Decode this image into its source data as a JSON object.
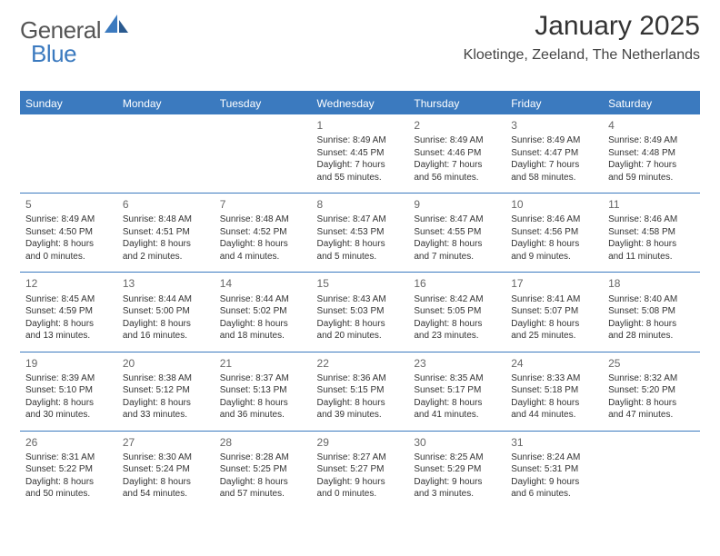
{
  "brand": {
    "part1": "General",
    "part2": "Blue",
    "text_color": "#555555",
    "accent_color": "#3b7abf"
  },
  "title": {
    "month": "January 2025",
    "location": "Kloetinge, Zeeland, The Netherlands"
  },
  "colors": {
    "header_bg": "#3b7abf",
    "header_text": "#ffffff",
    "rule": "#3b7abf",
    "body_text": "#333333",
    "daynum": "#666666",
    "background": "#ffffff"
  },
  "fonts": {
    "month_size": 30,
    "location_size": 16,
    "th_size": 12,
    "cell_size": 10,
    "daynum_size": 12
  },
  "headers": [
    "Sunday",
    "Monday",
    "Tuesday",
    "Wednesday",
    "Thursday",
    "Friday",
    "Saturday"
  ],
  "weeks": [
    [
      {
        "empty": true
      },
      {
        "empty": true
      },
      {
        "empty": true
      },
      {
        "day": "1",
        "sunrise": "Sunrise: 8:49 AM",
        "sunset": "Sunset: 4:45 PM",
        "daylight1": "Daylight: 7 hours",
        "daylight2": "and 55 minutes."
      },
      {
        "day": "2",
        "sunrise": "Sunrise: 8:49 AM",
        "sunset": "Sunset: 4:46 PM",
        "daylight1": "Daylight: 7 hours",
        "daylight2": "and 56 minutes."
      },
      {
        "day": "3",
        "sunrise": "Sunrise: 8:49 AM",
        "sunset": "Sunset: 4:47 PM",
        "daylight1": "Daylight: 7 hours",
        "daylight2": "and 58 minutes."
      },
      {
        "day": "4",
        "sunrise": "Sunrise: 8:49 AM",
        "sunset": "Sunset: 4:48 PM",
        "daylight1": "Daylight: 7 hours",
        "daylight2": "and 59 minutes."
      }
    ],
    [
      {
        "day": "5",
        "sunrise": "Sunrise: 8:49 AM",
        "sunset": "Sunset: 4:50 PM",
        "daylight1": "Daylight: 8 hours",
        "daylight2": "and 0 minutes."
      },
      {
        "day": "6",
        "sunrise": "Sunrise: 8:48 AM",
        "sunset": "Sunset: 4:51 PM",
        "daylight1": "Daylight: 8 hours",
        "daylight2": "and 2 minutes."
      },
      {
        "day": "7",
        "sunrise": "Sunrise: 8:48 AM",
        "sunset": "Sunset: 4:52 PM",
        "daylight1": "Daylight: 8 hours",
        "daylight2": "and 4 minutes."
      },
      {
        "day": "8",
        "sunrise": "Sunrise: 8:47 AM",
        "sunset": "Sunset: 4:53 PM",
        "daylight1": "Daylight: 8 hours",
        "daylight2": "and 5 minutes."
      },
      {
        "day": "9",
        "sunrise": "Sunrise: 8:47 AM",
        "sunset": "Sunset: 4:55 PM",
        "daylight1": "Daylight: 8 hours",
        "daylight2": "and 7 minutes."
      },
      {
        "day": "10",
        "sunrise": "Sunrise: 8:46 AM",
        "sunset": "Sunset: 4:56 PM",
        "daylight1": "Daylight: 8 hours",
        "daylight2": "and 9 minutes."
      },
      {
        "day": "11",
        "sunrise": "Sunrise: 8:46 AM",
        "sunset": "Sunset: 4:58 PM",
        "daylight1": "Daylight: 8 hours",
        "daylight2": "and 11 minutes."
      }
    ],
    [
      {
        "day": "12",
        "sunrise": "Sunrise: 8:45 AM",
        "sunset": "Sunset: 4:59 PM",
        "daylight1": "Daylight: 8 hours",
        "daylight2": "and 13 minutes."
      },
      {
        "day": "13",
        "sunrise": "Sunrise: 8:44 AM",
        "sunset": "Sunset: 5:00 PM",
        "daylight1": "Daylight: 8 hours",
        "daylight2": "and 16 minutes."
      },
      {
        "day": "14",
        "sunrise": "Sunrise: 8:44 AM",
        "sunset": "Sunset: 5:02 PM",
        "daylight1": "Daylight: 8 hours",
        "daylight2": "and 18 minutes."
      },
      {
        "day": "15",
        "sunrise": "Sunrise: 8:43 AM",
        "sunset": "Sunset: 5:03 PM",
        "daylight1": "Daylight: 8 hours",
        "daylight2": "and 20 minutes."
      },
      {
        "day": "16",
        "sunrise": "Sunrise: 8:42 AM",
        "sunset": "Sunset: 5:05 PM",
        "daylight1": "Daylight: 8 hours",
        "daylight2": "and 23 minutes."
      },
      {
        "day": "17",
        "sunrise": "Sunrise: 8:41 AM",
        "sunset": "Sunset: 5:07 PM",
        "daylight1": "Daylight: 8 hours",
        "daylight2": "and 25 minutes."
      },
      {
        "day": "18",
        "sunrise": "Sunrise: 8:40 AM",
        "sunset": "Sunset: 5:08 PM",
        "daylight1": "Daylight: 8 hours",
        "daylight2": "and 28 minutes."
      }
    ],
    [
      {
        "day": "19",
        "sunrise": "Sunrise: 8:39 AM",
        "sunset": "Sunset: 5:10 PM",
        "daylight1": "Daylight: 8 hours",
        "daylight2": "and 30 minutes."
      },
      {
        "day": "20",
        "sunrise": "Sunrise: 8:38 AM",
        "sunset": "Sunset: 5:12 PM",
        "daylight1": "Daylight: 8 hours",
        "daylight2": "and 33 minutes."
      },
      {
        "day": "21",
        "sunrise": "Sunrise: 8:37 AM",
        "sunset": "Sunset: 5:13 PM",
        "daylight1": "Daylight: 8 hours",
        "daylight2": "and 36 minutes."
      },
      {
        "day": "22",
        "sunrise": "Sunrise: 8:36 AM",
        "sunset": "Sunset: 5:15 PM",
        "daylight1": "Daylight: 8 hours",
        "daylight2": "and 39 minutes."
      },
      {
        "day": "23",
        "sunrise": "Sunrise: 8:35 AM",
        "sunset": "Sunset: 5:17 PM",
        "daylight1": "Daylight: 8 hours",
        "daylight2": "and 41 minutes."
      },
      {
        "day": "24",
        "sunrise": "Sunrise: 8:33 AM",
        "sunset": "Sunset: 5:18 PM",
        "daylight1": "Daylight: 8 hours",
        "daylight2": "and 44 minutes."
      },
      {
        "day": "25",
        "sunrise": "Sunrise: 8:32 AM",
        "sunset": "Sunset: 5:20 PM",
        "daylight1": "Daylight: 8 hours",
        "daylight2": "and 47 minutes."
      }
    ],
    [
      {
        "day": "26",
        "sunrise": "Sunrise: 8:31 AM",
        "sunset": "Sunset: 5:22 PM",
        "daylight1": "Daylight: 8 hours",
        "daylight2": "and 50 minutes."
      },
      {
        "day": "27",
        "sunrise": "Sunrise: 8:30 AM",
        "sunset": "Sunset: 5:24 PM",
        "daylight1": "Daylight: 8 hours",
        "daylight2": "and 54 minutes."
      },
      {
        "day": "28",
        "sunrise": "Sunrise: 8:28 AM",
        "sunset": "Sunset: 5:25 PM",
        "daylight1": "Daylight: 8 hours",
        "daylight2": "and 57 minutes."
      },
      {
        "day": "29",
        "sunrise": "Sunrise: 8:27 AM",
        "sunset": "Sunset: 5:27 PM",
        "daylight1": "Daylight: 9 hours",
        "daylight2": "and 0 minutes."
      },
      {
        "day": "30",
        "sunrise": "Sunrise: 8:25 AM",
        "sunset": "Sunset: 5:29 PM",
        "daylight1": "Daylight: 9 hours",
        "daylight2": "and 3 minutes."
      },
      {
        "day": "31",
        "sunrise": "Sunrise: 8:24 AM",
        "sunset": "Sunset: 5:31 PM",
        "daylight1": "Daylight: 9 hours",
        "daylight2": "and 6 minutes."
      },
      {
        "empty": true
      }
    ]
  ]
}
